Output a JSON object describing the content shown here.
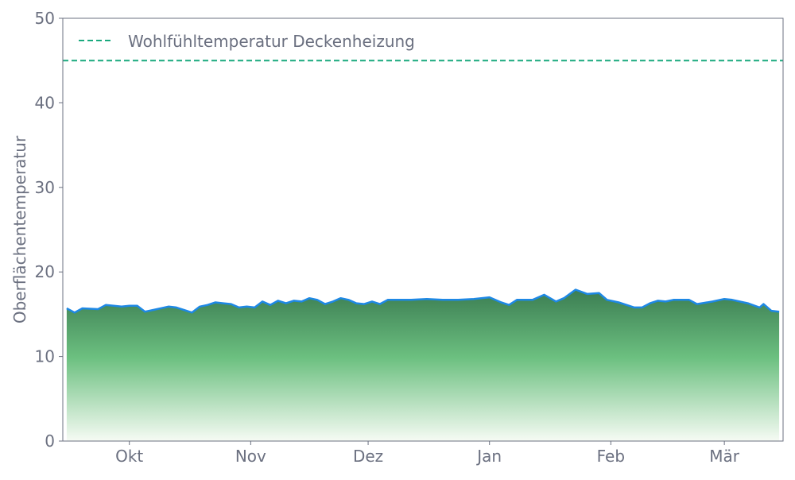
{
  "chart_data": {
    "type": "area",
    "title": "",
    "xlabel": "",
    "ylabel": "Oberflächentemperatur",
    "ylim": [
      0,
      50
    ],
    "xlim": [
      "2023-09-14",
      "2024-03-16"
    ],
    "yticks": [
      0,
      10,
      20,
      30,
      40,
      50
    ],
    "xticks": [
      {
        "date": "2023-10-01",
        "label": "Okt"
      },
      {
        "date": "2023-11-01",
        "label": "Nov"
      },
      {
        "date": "2023-12-01",
        "label": "Dez"
      },
      {
        "date": "2024-01-01",
        "label": "Jan"
      },
      {
        "date": "2024-02-01",
        "label": "Feb"
      },
      {
        "date": "2024-03-01",
        "label": "Mär"
      }
    ],
    "grid": false,
    "legend_position": "top-left",
    "colors": {
      "line": "#1e88e5",
      "fill_top": "#3b7d52",
      "fill_mid": "#6cc080",
      "fill_bottom": "#f6fbf4",
      "reference": "#1aa97e",
      "text": "#6b7080",
      "axis": "#6b7080"
    },
    "reference_line": {
      "name": "Wohlfühltemperatur Deckenheizung",
      "value": 45,
      "style": "dashed"
    },
    "x": [
      "2023-09-15",
      "2023-09-17",
      "2023-09-19",
      "2023-09-23",
      "2023-09-25",
      "2023-09-29",
      "2023-10-01",
      "2023-10-03",
      "2023-10-05",
      "2023-10-07",
      "2023-10-11",
      "2023-10-13",
      "2023-10-15",
      "2023-10-17",
      "2023-10-19",
      "2023-10-21",
      "2023-10-23",
      "2023-10-25",
      "2023-10-27",
      "2023-10-29",
      "2023-10-31",
      "2023-11-02",
      "2023-11-04",
      "2023-11-06",
      "2023-11-08",
      "2023-11-10",
      "2023-11-12",
      "2023-11-14",
      "2023-11-16",
      "2023-11-18",
      "2023-11-20",
      "2023-11-22",
      "2023-11-24",
      "2023-11-26",
      "2023-11-28",
      "2023-11-30",
      "2023-12-02",
      "2023-12-04",
      "2023-12-06",
      "2023-12-08",
      "2023-12-12",
      "2023-12-16",
      "2023-12-20",
      "2023-12-24",
      "2023-12-28",
      "2024-01-01",
      "2024-01-04",
      "2024-01-06",
      "2024-01-08",
      "2024-01-12",
      "2024-01-15",
      "2024-01-18",
      "2024-01-20",
      "2024-01-23",
      "2024-01-26",
      "2024-01-29",
      "2024-01-31",
      "2024-02-03",
      "2024-02-05",
      "2024-02-07",
      "2024-02-09",
      "2024-02-11",
      "2024-02-13",
      "2024-02-15",
      "2024-02-17",
      "2024-02-21",
      "2024-02-23",
      "2024-02-27",
      "2024-03-01",
      "2024-03-03",
      "2024-03-07",
      "2024-03-10",
      "2024-03-11",
      "2024-03-13",
      "2024-03-15"
    ],
    "values": [
      15.7,
      15.2,
      15.7,
      15.6,
      16.1,
      15.9,
      16.0,
      16.0,
      15.3,
      15.5,
      15.9,
      15.8,
      15.5,
      15.2,
      15.9,
      16.1,
      16.4,
      16.3,
      16.2,
      15.8,
      15.9,
      15.8,
      16.5,
      16.1,
      16.6,
      16.3,
      16.6,
      16.5,
      16.9,
      16.7,
      16.2,
      16.5,
      16.9,
      16.7,
      16.3,
      16.2,
      16.5,
      16.2,
      16.7,
      16.7,
      16.7,
      16.8,
      16.7,
      16.7,
      16.8,
      17.0,
      16.4,
      16.1,
      16.7,
      16.7,
      17.3,
      16.5,
      16.9,
      17.9,
      17.4,
      17.5,
      16.7,
      16.4,
      16.1,
      15.8,
      15.8,
      16.3,
      16.6,
      16.5,
      16.7,
      16.7,
      16.2,
      16.5,
      16.8,
      16.7,
      16.3,
      15.8,
      16.2,
      15.4,
      15.3
    ]
  }
}
